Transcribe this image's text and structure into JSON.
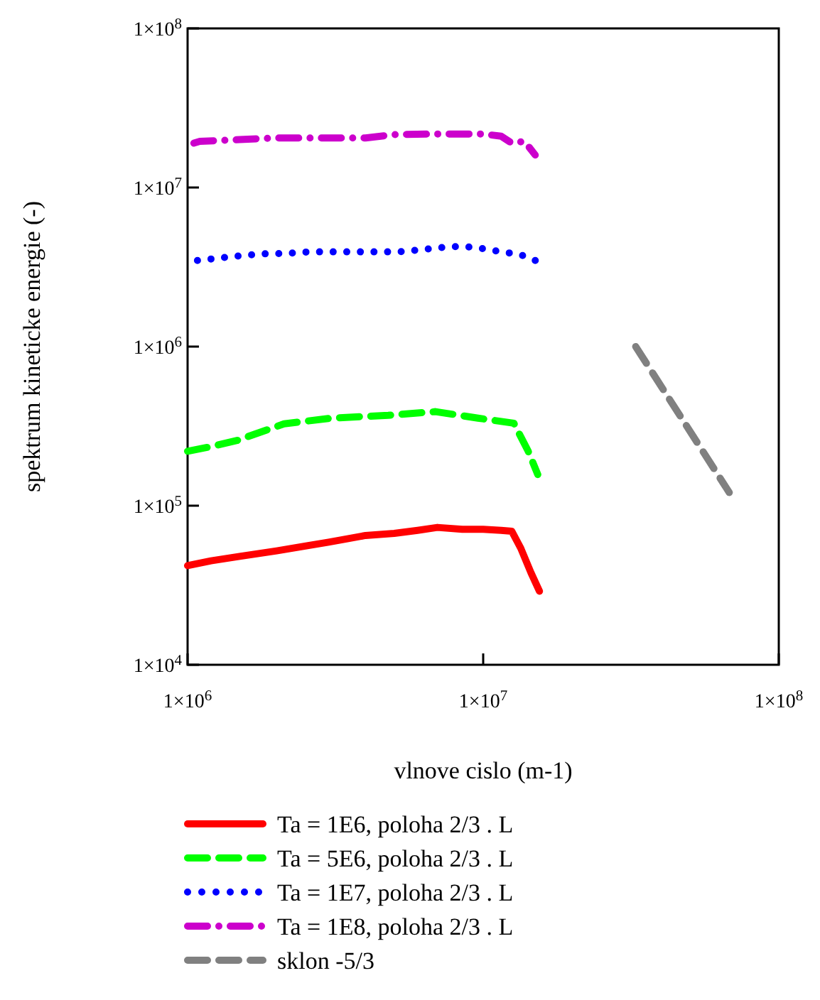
{
  "chart_data": {
    "type": "line",
    "xlabel": "vlnove cislo (m-1)",
    "ylabel": "spektrum kineticke energie (-)",
    "log": "xy",
    "xlim": [
      1000000,
      100000000
    ],
    "ylim": [
      10000,
      100000000
    ],
    "xticks": [
      {
        "value": 1000000,
        "label": "1×10$^{6}$"
      },
      {
        "value": 10000000,
        "label": "1×10$^{7}$"
      },
      {
        "value": 100000000,
        "label": "1×10$^{8}$"
      }
    ],
    "yticks": [
      {
        "value": 10000,
        "label": "1×10$^{4}$"
      },
      {
        "value": 100000,
        "label": "1×10$^{5}$"
      },
      {
        "value": 1000000,
        "label": "1×10$^{6}$"
      },
      {
        "value": 10000000,
        "label": "1×10$^{7}$"
      },
      {
        "value": 100000000,
        "label": "1×10$^{8}$"
      }
    ],
    "grid": false,
    "legend": "bottom",
    "series": [
      {
        "name": "Ta = 1E6, poloha 2/3 . L",
        "color": "#ff0000",
        "line_style": "solid",
        "x": [
          1000000,
          1200000,
          1500000,
          2000000,
          3000000,
          4000000,
          5000000,
          6000000,
          7000000,
          8500000,
          10000000,
          11500000,
          12500000,
          13400000,
          14500000,
          15500000
        ],
        "values": [
          42000,
          45000,
          48000,
          52000,
          59000,
          65000,
          67000,
          70000,
          73000,
          71000,
          71000,
          70000,
          69000,
          54000,
          38000,
          29000
        ]
      },
      {
        "name": "Ta = 5E6, poloha 2/3 . L",
        "color": "#00ff00",
        "line_style": "dashed",
        "x": [
          1000000,
          1200000,
          1470000,
          2120000,
          3070000,
          4770000,
          6900000,
          9600000,
          12700000,
          14200000,
          15300000
        ],
        "values": [
          220000,
          235000,
          257000,
          327000,
          355000,
          370000,
          390000,
          355000,
          330000,
          220000,
          157000
        ]
      },
      {
        "name": "Ta = 1E7, poloha 2/3 . L",
        "color": "#0000ff",
        "line_style": "dotted",
        "x": [
          1080000,
          1280000,
          1520000,
          1820000,
          2160000,
          2570000,
          3070000,
          3650000,
          4350000,
          5170000,
          6080000,
          7130000,
          8470000,
          9930000,
          11500000,
          13300000,
          15000000
        ],
        "values": [
          3480000,
          3600000,
          3730000,
          3830000,
          3850000,
          3940000,
          3940000,
          3940000,
          3940000,
          3940000,
          4050000,
          4190000,
          4280000,
          4130000,
          3940000,
          3800000,
          3480000
        ]
      },
      {
        "name": "Ta = 1E8, poloha 2/3 . L",
        "color": "#cc00cc",
        "line_style": "dashdot",
        "x": [
          1050000,
          1100000,
          1500000,
          2000000,
          3000000,
          4000000,
          5000000,
          7000000,
          10000000,
          11500000,
          12500000,
          13800000,
          15000000
        ],
        "values": [
          19000000,
          19500000,
          20000000,
          20500000,
          20500000,
          20500000,
          21500000,
          21700000,
          21700000,
          21000000,
          19000000,
          19500000,
          16000000
        ]
      },
      {
        "name": "sklon -5/3",
        "color": "#808080",
        "line_style": "dashed",
        "x": [
          32800000,
          68000000
        ],
        "values": [
          1000000,
          121000
        ]
      }
    ]
  }
}
